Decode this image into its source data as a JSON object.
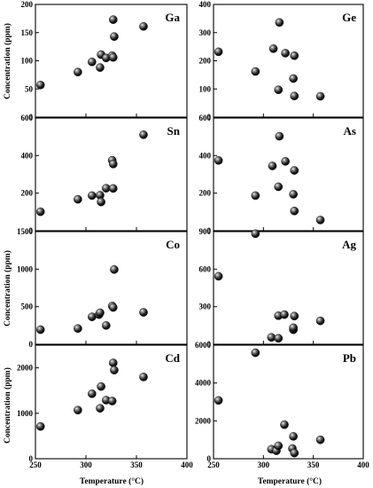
{
  "figure": {
    "xlabel": "Temperature (°C)",
    "ylabel": "Concentration (ppm)"
  },
  "chart_data": [
    {
      "type": "scatter",
      "label": "Ga",
      "xlim": [
        250,
        400
      ],
      "ylim": [
        0,
        200
      ],
      "xticks": [
        250,
        300,
        350,
        400
      ],
      "yticks": [
        0,
        50,
        100,
        150,
        200
      ],
      "points": [
        [
          255,
          57
        ],
        [
          292,
          80
        ],
        [
          306,
          98
        ],
        [
          314,
          88
        ],
        [
          315,
          111
        ],
        [
          320,
          105
        ],
        [
          326,
          109
        ],
        [
          327,
          106
        ],
        [
          327,
          173
        ],
        [
          328,
          143
        ],
        [
          357,
          161
        ]
      ]
    },
    {
      "type": "scatter",
      "label": "Ge",
      "xlim": [
        250,
        400
      ],
      "ylim": [
        0,
        400
      ],
      "xticks": [
        250,
        300,
        350,
        400
      ],
      "yticks": [
        0,
        100,
        200,
        300,
        400
      ],
      "points": [
        [
          255,
          232
        ],
        [
          292,
          162
        ],
        [
          310,
          243
        ],
        [
          315,
          97
        ],
        [
          316,
          336
        ],
        [
          322,
          227
        ],
        [
          330,
          137
        ],
        [
          331,
          218
        ],
        [
          331,
          75
        ],
        [
          357,
          74
        ]
      ]
    },
    {
      "type": "scatter",
      "label": "Sn",
      "xlim": [
        250,
        400
      ],
      "ylim": [
        0,
        600
      ],
      "xticks": [
        250,
        300,
        350,
        400
      ],
      "yticks": [
        0,
        200,
        400,
        600
      ],
      "points": [
        [
          255,
          101
        ],
        [
          292,
          167
        ],
        [
          306,
          187
        ],
        [
          314,
          189
        ],
        [
          315,
          153
        ],
        [
          320,
          226
        ],
        [
          326,
          375
        ],
        [
          327,
          225
        ],
        [
          327,
          355
        ],
        [
          357,
          511
        ]
      ]
    },
    {
      "type": "scatter",
      "label": "As",
      "xlim": [
        250,
        400
      ],
      "ylim": [
        0,
        600
      ],
      "xticks": [
        250,
        300,
        350,
        400
      ],
      "yticks": [
        0,
        200,
        400,
        600
      ],
      "points": [
        [
          255,
          374
        ],
        [
          292,
          187
        ],
        [
          309,
          345
        ],
        [
          315,
          234
        ],
        [
          316,
          503
        ],
        [
          322,
          369
        ],
        [
          330,
          194
        ],
        [
          331,
          321
        ],
        [
          331,
          105
        ],
        [
          357,
          57
        ]
      ]
    },
    {
      "type": "scatter",
      "label": "Co",
      "xlim": [
        250,
        400
      ],
      "ylim": [
        0,
        1500
      ],
      "xticks": [
        250,
        300,
        350,
        400
      ],
      "yticks": [
        0,
        500,
        1000,
        1500
      ],
      "points": [
        [
          255,
          195
        ],
        [
          292,
          210
        ],
        [
          306,
          365
        ],
        [
          313,
          395
        ],
        [
          314,
          420
        ],
        [
          320,
          250
        ],
        [
          326,
          510
        ],
        [
          327,
          490
        ],
        [
          328,
          995
        ],
        [
          357,
          425
        ]
      ]
    },
    {
      "type": "scatter",
      "label": "Ag",
      "xlim": [
        250,
        400
      ],
      "ylim": [
        0,
        900
      ],
      "xticks": [
        250,
        300,
        350,
        400
      ],
      "yticks": [
        0,
        300,
        600,
        900
      ],
      "points": [
        [
          255,
          543
        ],
        [
          292,
          883
        ],
        [
          308,
          55
        ],
        [
          315,
          228
        ],
        [
          315,
          48
        ],
        [
          321,
          237
        ],
        [
          330,
          116
        ],
        [
          330,
          132
        ],
        [
          331,
          225
        ],
        [
          357,
          187
        ]
      ]
    },
    {
      "type": "scatter",
      "label": "Cd",
      "xlim": [
        250,
        400
      ],
      "ylim": [
        0,
        2500
      ],
      "xticks": [
        250,
        300,
        350,
        400
      ],
      "yticks": [
        0,
        1000,
        2000
      ],
      "points": [
        [
          255,
          710
        ],
        [
          292,
          1070
        ],
        [
          306,
          1430
        ],
        [
          314,
          1110
        ],
        [
          315,
          1590
        ],
        [
          320,
          1290
        ],
        [
          326,
          1270
        ],
        [
          327,
          2110
        ],
        [
          328,
          1950
        ],
        [
          357,
          1800
        ]
      ]
    },
    {
      "type": "scatter",
      "label": "Pb",
      "xlim": [
        250,
        400
      ],
      "ylim": [
        0,
        6000
      ],
      "xticks": [
        250,
        300,
        350,
        400
      ],
      "yticks": [
        0,
        2000,
        4000,
        6000
      ],
      "points": [
        [
          255,
          3080
        ],
        [
          292,
          5600
        ],
        [
          308,
          500
        ],
        [
          313,
          420
        ],
        [
          315,
          680
        ],
        [
          321,
          1800
        ],
        [
          329,
          540
        ],
        [
          330,
          1180
        ],
        [
          331,
          300
        ],
        [
          357,
          1000
        ]
      ]
    }
  ]
}
